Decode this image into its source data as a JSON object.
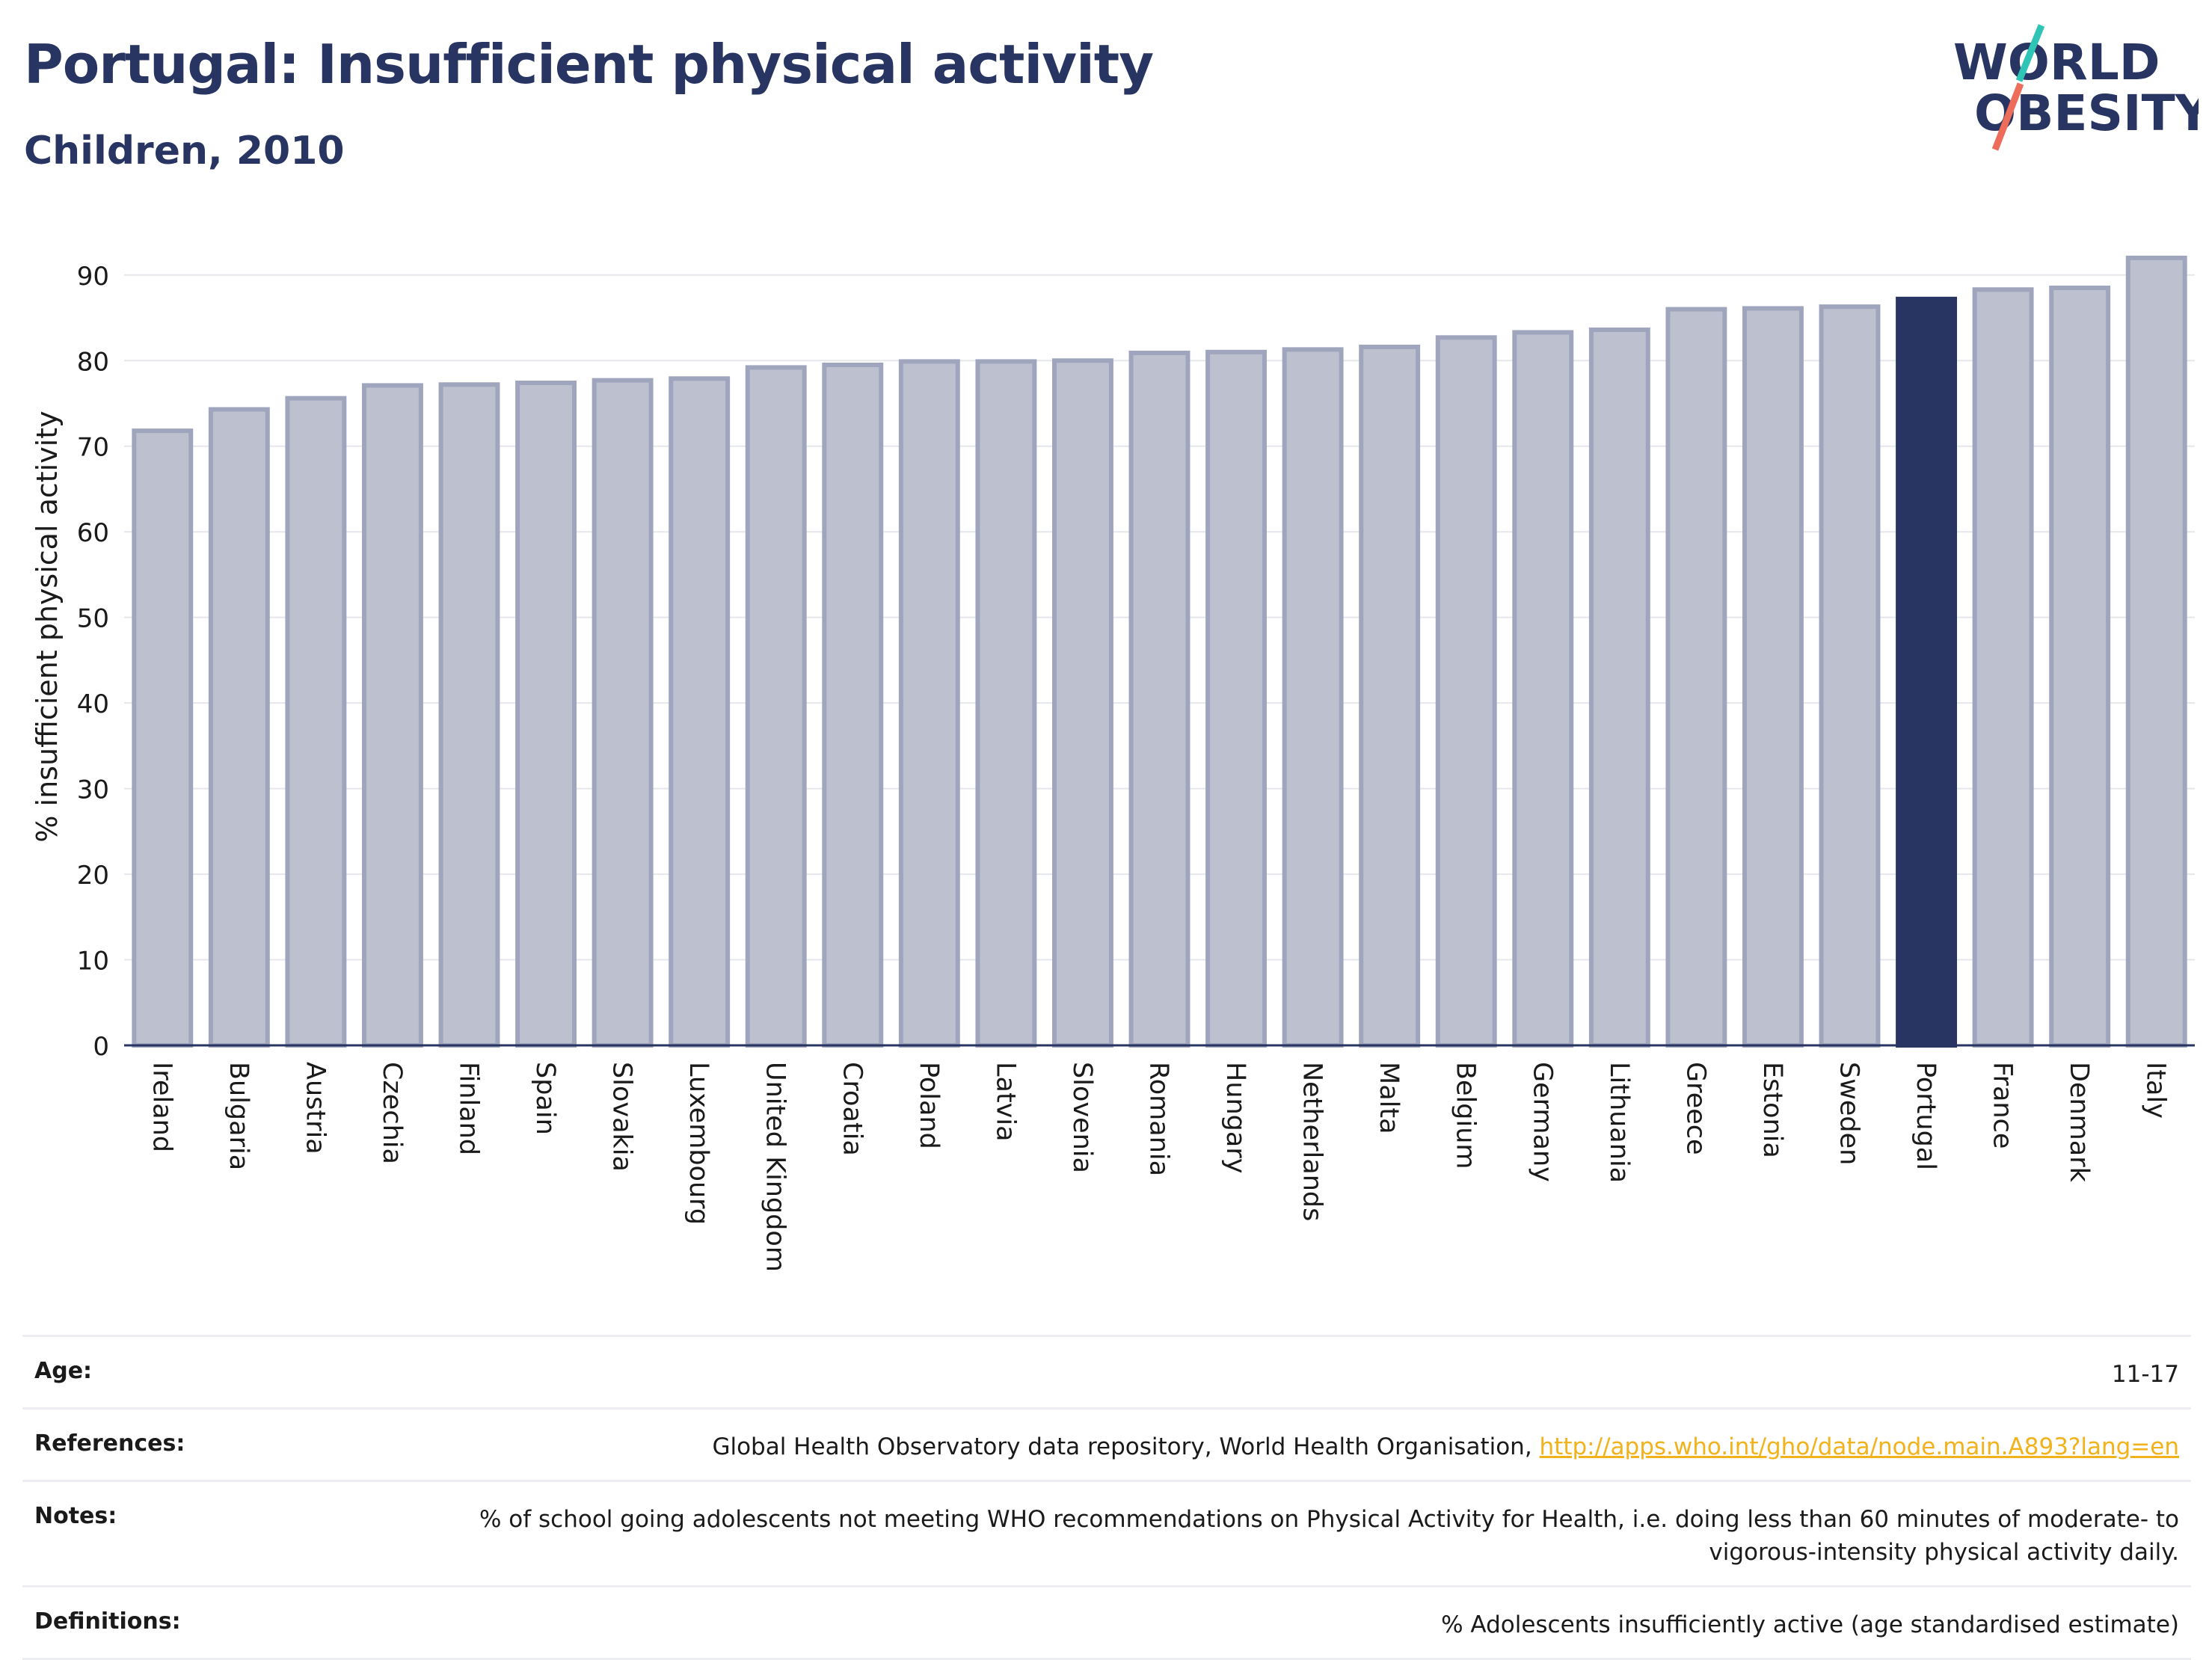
{
  "header": {
    "title": "Portugal: Insufficient physical activity",
    "subtitle": "Children, 2010"
  },
  "logo": {
    "line1": "WORLD",
    "line2": "OBESITY"
  },
  "chart_data": {
    "type": "bar",
    "ylabel": "% insufficient physical activity",
    "xlabel": "",
    "ylim": [
      0,
      94
    ],
    "yticks": [
      0,
      10,
      20,
      30,
      40,
      50,
      60,
      70,
      80,
      90
    ],
    "grid": true,
    "highlight": "Portugal",
    "colors": {
      "bar": "#bdc1cf",
      "bar_border": "#9fa5bd",
      "highlight": "#283462",
      "grid": "#e6e7ec",
      "axis": "#283462"
    },
    "categories": [
      "Ireland",
      "Bulgaria",
      "Austria",
      "Czechia",
      "Finland",
      "Spain",
      "Slovakia",
      "Luxembourg",
      "United Kingdom",
      "Croatia",
      "Poland",
      "Latvia",
      "Slovenia",
      "Romania",
      "Hungary",
      "Netherlands",
      "Malta",
      "Belgium",
      "Germany",
      "Lithuania",
      "Greece",
      "Estonia",
      "Sweden",
      "Portugal",
      "France",
      "Denmark",
      "Italy"
    ],
    "values": [
      71.8,
      74.3,
      75.6,
      77.1,
      77.2,
      77.4,
      77.7,
      77.9,
      79.2,
      79.5,
      79.9,
      79.9,
      80.0,
      80.9,
      81.0,
      81.3,
      81.6,
      82.7,
      83.3,
      83.6,
      86.0,
      86.1,
      86.3,
      87.2,
      88.3,
      88.5,
      92.0
    ]
  },
  "info": {
    "age_label": "Age:",
    "age_value": "11-17",
    "references_label": "References:",
    "references_text": "Global Health Observatory data repository, World Health Organisation, ",
    "references_link": "http://apps.who.int/gho/data/node.main.A893?lang=en",
    "notes_label": "Notes:",
    "notes_value": "% of school going adolescents not meeting WHO recommendations on Physical Activity for Health, i.e. doing less than 60 minutes of moderate- to vigorous-intensity physical activity daily.",
    "definitions_label": "Definitions:",
    "definitions_value": "% Adolescents insufficiently active (age standardised estimate)"
  }
}
